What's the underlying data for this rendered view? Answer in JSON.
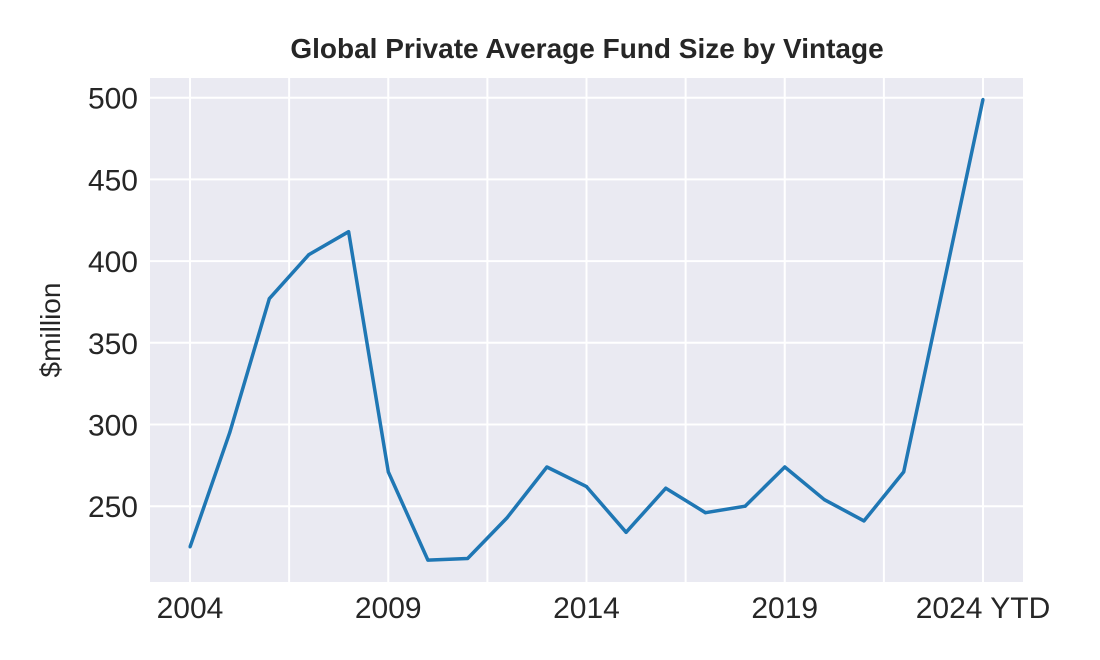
{
  "chart_data": {
    "type": "line",
    "title": "Global Private Average Fund Size by Vintage",
    "xlabel": "",
    "ylabel": "$million",
    "x": [
      "2004",
      "2005",
      "2006",
      "2007",
      "2008",
      "2009",
      "2010",
      "2011",
      "2012",
      "2013",
      "2014",
      "2015",
      "2016",
      "2017",
      "2018",
      "2019",
      "2020",
      "2021",
      "2022",
      "2023",
      "2024 YTD"
    ],
    "series": [
      {
        "name": "Average Fund Size",
        "color": "#1f77b4",
        "values": [
          225,
          295,
          377,
          404,
          418,
          271,
          217,
          218,
          243,
          274,
          262,
          234,
          261,
          246,
          250,
          274,
          254,
          241,
          271,
          385,
          499
        ]
      }
    ],
    "x_tick_labels": [
      "2004",
      "2009",
      "2014",
      "2019",
      "2024 YTD"
    ],
    "y_ticks": [
      250,
      300,
      350,
      400,
      450,
      500
    ],
    "y_tick_labels": [
      "250",
      "300",
      "350",
      "400",
      "450",
      "500"
    ],
    "ylim": [
      202,
      512
    ],
    "xlim": [
      -1,
      21
    ],
    "grid": true,
    "background_color": "#eaeaf2",
    "grid_color": "#ffffff"
  }
}
